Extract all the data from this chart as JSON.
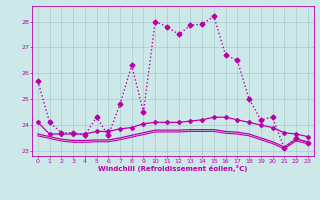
{
  "xlabel": "Windchill (Refroidissement éolien,°C)",
  "xlim": [
    -0.5,
    23.5
  ],
  "ylim": [
    22.8,
    28.6
  ],
  "yticks": [
    23,
    24,
    25,
    26,
    27,
    28
  ],
  "xticks": [
    0,
    1,
    2,
    3,
    4,
    5,
    6,
    7,
    8,
    9,
    10,
    11,
    12,
    13,
    14,
    15,
    16,
    17,
    18,
    19,
    20,
    21,
    22,
    23
  ],
  "background_color": "#cce8e8",
  "line_color": "#bb00aa",
  "grid_color": "#aacccc",
  "series": [
    {
      "x": [
        0,
        1,
        2,
        3,
        4,
        5,
        6,
        7,
        8,
        9,
        10,
        11,
        12,
        13,
        14,
        15,
        16,
        17,
        18,
        19,
        20,
        21,
        22,
        23
      ],
      "y": [
        25.7,
        24.1,
        23.7,
        23.7,
        23.6,
        24.3,
        23.6,
        24.8,
        26.3,
        24.5,
        28.0,
        27.8,
        27.5,
        27.85,
        27.9,
        28.2,
        26.7,
        26.5,
        25.0,
        24.2,
        24.3,
        23.1,
        23.5,
        23.3
      ],
      "marker": "D",
      "markersize": 2.5,
      "linewidth": 1.0,
      "linestyle": ":"
    },
    {
      "x": [
        0,
        1,
        2,
        3,
        4,
        5,
        6,
        7,
        8,
        9,
        10,
        11,
        12,
        13,
        14,
        15,
        16,
        17,
        18,
        19,
        20,
        21,
        22,
        23
      ],
      "y": [
        24.1,
        23.65,
        23.65,
        23.65,
        23.65,
        23.75,
        23.75,
        23.85,
        23.9,
        24.05,
        24.1,
        24.1,
        24.1,
        24.15,
        24.2,
        24.3,
        24.3,
        24.2,
        24.1,
        24.0,
        23.9,
        23.7,
        23.65,
        23.55
      ],
      "marker": "D",
      "markersize": 2.0,
      "linewidth": 0.9,
      "linestyle": "-"
    },
    {
      "x": [
        0,
        1,
        2,
        3,
        4,
        5,
        6,
        7,
        8,
        9,
        10,
        11,
        12,
        13,
        14,
        15,
        16,
        17,
        18,
        19,
        20,
        21,
        22,
        23
      ],
      "y": [
        23.65,
        23.55,
        23.45,
        23.4,
        23.4,
        23.42,
        23.42,
        23.5,
        23.6,
        23.7,
        23.8,
        23.8,
        23.8,
        23.82,
        23.82,
        23.82,
        23.75,
        23.72,
        23.65,
        23.5,
        23.35,
        23.15,
        23.45,
        23.35
      ],
      "marker": "",
      "markersize": 0,
      "linewidth": 0.9,
      "linestyle": "-"
    },
    {
      "x": [
        0,
        1,
        2,
        3,
        4,
        5,
        6,
        7,
        8,
        9,
        10,
        11,
        12,
        13,
        14,
        15,
        16,
        17,
        18,
        19,
        20,
        21,
        22,
        23
      ],
      "y": [
        23.58,
        23.48,
        23.38,
        23.33,
        23.33,
        23.35,
        23.35,
        23.43,
        23.53,
        23.63,
        23.73,
        23.73,
        23.73,
        23.75,
        23.75,
        23.75,
        23.68,
        23.65,
        23.58,
        23.43,
        23.28,
        23.08,
        23.38,
        23.28
      ],
      "marker": "",
      "markersize": 0,
      "linewidth": 0.8,
      "linestyle": "-"
    }
  ]
}
